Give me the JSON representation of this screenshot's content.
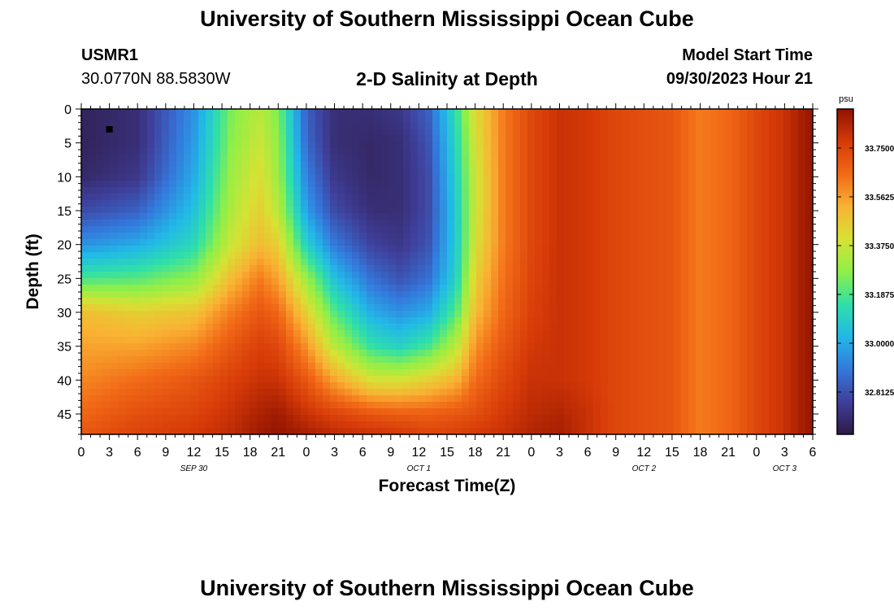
{
  "header": {
    "title": "University of Southern Mississippi Ocean Cube",
    "station_id": "USMR1",
    "coordinates": "30.0770N  88.5830W",
    "subtitle": "2-D Salinity at Depth",
    "model_start_label": "Model Start Time",
    "model_start_value": "09/30/2023 Hour 21"
  },
  "footer": {
    "title": "University of Southern Mississippi Ocean Cube"
  },
  "chart_data": {
    "type": "heatmap",
    "title": "2-D Salinity at Depth",
    "xlabel": "Forecast Time(Z)",
    "ylabel": "Depth (ft)",
    "x_range_hours": [
      0,
      78
    ],
    "y_range_ft": [
      0,
      48
    ],
    "x_tick_hours": [
      0,
      3,
      6,
      9,
      12,
      15,
      18,
      21,
      24,
      27,
      30,
      33,
      36,
      39,
      42,
      45,
      48,
      51,
      54,
      57,
      60,
      63,
      66,
      69,
      72,
      75,
      78
    ],
    "x_tick_labels": [
      "0",
      "3",
      "6",
      "9",
      "12",
      "15",
      "18",
      "21",
      "0",
      "3",
      "6",
      "9",
      "12",
      "15",
      "18",
      "21",
      "0",
      "3",
      "6",
      "9",
      "12",
      "15",
      "18",
      "21",
      "0",
      "3",
      "6"
    ],
    "y_ticks": [
      0,
      5,
      10,
      15,
      20,
      25,
      30,
      35,
      40,
      45
    ],
    "day_labels": [
      {
        "hour": 12,
        "text": "SEP 30"
      },
      {
        "hour": 36,
        "text": "OCT 1"
      },
      {
        "hour": 60,
        "text": "OCT 2"
      },
      {
        "hour": 75,
        "text": "OCT 3"
      }
    ],
    "colorbar": {
      "unit": "psu",
      "min": 32.65,
      "max": 33.9,
      "ticks": [
        32.8125,
        33.0,
        33.1875,
        33.375,
        33.5625,
        33.75
      ],
      "tick_labels": [
        "32.8125",
        "33.0000",
        "33.1875",
        "33.3750",
        "33.5625",
        "33.7500"
      ],
      "colors": [
        "#2e1a47",
        "#3f3f9a",
        "#3478dc",
        "#22b8e8",
        "#2fe0a8",
        "#8fef48",
        "#d6e234",
        "#f9b233",
        "#f26a17",
        "#d63a08",
        "#8f1200"
      ]
    },
    "marker": {
      "hour": 3,
      "depth_ft": 3
    },
    "profiles": {
      "hours": [
        0,
        6,
        12,
        16,
        19,
        21,
        24,
        27,
        31,
        34,
        37,
        40,
        42,
        45,
        48,
        51,
        54,
        57,
        60,
        63,
        66,
        69,
        72,
        75,
        76.5,
        78
      ],
      "depths_ft": [
        0,
        5,
        10,
        15,
        20,
        25,
        30,
        35,
        40,
        45,
        48
      ],
      "salinity_psu": [
        [
          32.68,
          32.68,
          32.7,
          32.8,
          32.95,
          33.18,
          33.5,
          33.55,
          33.6,
          33.66,
          33.7
        ],
        [
          32.72,
          32.72,
          32.75,
          32.85,
          33.0,
          33.2,
          33.45,
          33.55,
          33.65,
          33.72,
          33.75
        ],
        [
          32.95,
          32.97,
          33.0,
          33.05,
          33.12,
          33.28,
          33.48,
          33.6,
          33.7,
          33.75,
          33.78
        ],
        [
          33.25,
          33.27,
          33.3,
          33.33,
          33.38,
          33.5,
          33.62,
          33.7,
          33.76,
          33.8,
          33.82
        ],
        [
          33.35,
          33.38,
          33.42,
          33.45,
          33.5,
          33.62,
          33.7,
          33.76,
          33.8,
          33.85,
          33.87
        ],
        [
          33.25,
          33.28,
          33.3,
          33.35,
          33.45,
          33.55,
          33.66,
          33.74,
          33.8,
          33.87,
          33.89
        ],
        [
          32.85,
          32.87,
          32.92,
          32.98,
          33.1,
          33.3,
          33.45,
          33.58,
          33.7,
          33.8,
          33.86
        ],
        [
          32.72,
          32.72,
          32.75,
          32.8,
          32.9,
          33.05,
          33.2,
          33.35,
          33.55,
          33.75,
          33.82
        ],
        [
          32.72,
          32.7,
          32.7,
          32.72,
          32.78,
          32.88,
          33.0,
          33.15,
          33.4,
          33.7,
          33.8
        ],
        [
          32.75,
          32.72,
          32.72,
          32.72,
          32.75,
          32.82,
          32.95,
          33.1,
          33.4,
          33.68,
          33.78
        ],
        [
          32.85,
          32.82,
          32.8,
          32.8,
          32.82,
          32.88,
          33.0,
          33.18,
          33.45,
          33.68,
          33.75
        ],
        [
          33.15,
          33.12,
          33.1,
          33.08,
          33.08,
          33.1,
          33.2,
          33.35,
          33.52,
          33.7,
          33.76
        ],
        [
          33.42,
          33.4,
          33.38,
          33.38,
          33.4,
          33.45,
          33.5,
          33.58,
          33.65,
          33.72,
          33.78
        ],
        [
          33.62,
          33.62,
          33.62,
          33.62,
          33.62,
          33.64,
          33.66,
          33.7,
          33.74,
          33.78,
          33.8
        ],
        [
          33.74,
          33.74,
          33.74,
          33.74,
          33.74,
          33.75,
          33.76,
          33.78,
          33.8,
          33.82,
          33.84
        ],
        [
          33.8,
          33.8,
          33.8,
          33.8,
          33.8,
          33.8,
          33.8,
          33.8,
          33.8,
          33.84,
          33.86
        ],
        [
          33.78,
          33.78,
          33.78,
          33.78,
          33.78,
          33.78,
          33.78,
          33.78,
          33.78,
          33.8,
          33.8
        ],
        [
          33.74,
          33.74,
          33.74,
          33.74,
          33.74,
          33.74,
          33.74,
          33.74,
          33.74,
          33.74,
          33.74
        ],
        [
          33.72,
          33.72,
          33.72,
          33.72,
          33.72,
          33.72,
          33.72,
          33.72,
          33.72,
          33.72,
          33.72
        ],
        [
          33.7,
          33.7,
          33.7,
          33.7,
          33.7,
          33.7,
          33.7,
          33.7,
          33.7,
          33.7,
          33.7
        ],
        [
          33.62,
          33.62,
          33.62,
          33.62,
          33.62,
          33.62,
          33.62,
          33.62,
          33.62,
          33.62,
          33.62
        ],
        [
          33.66,
          33.66,
          33.66,
          33.66,
          33.66,
          33.66,
          33.66,
          33.66,
          33.66,
          33.66,
          33.66
        ],
        [
          33.74,
          33.74,
          33.74,
          33.74,
          33.74,
          33.74,
          33.74,
          33.74,
          33.74,
          33.74,
          33.74
        ],
        [
          33.8,
          33.8,
          33.8,
          33.8,
          33.8,
          33.8,
          33.8,
          33.8,
          33.8,
          33.8,
          33.8
        ],
        [
          33.85,
          33.85,
          33.85,
          33.85,
          33.85,
          33.85,
          33.85,
          33.85,
          33.85,
          33.85,
          33.85
        ],
        [
          33.89,
          33.89,
          33.89,
          33.89,
          33.89,
          33.89,
          33.89,
          33.89,
          33.89,
          33.89,
          33.89
        ]
      ]
    }
  }
}
